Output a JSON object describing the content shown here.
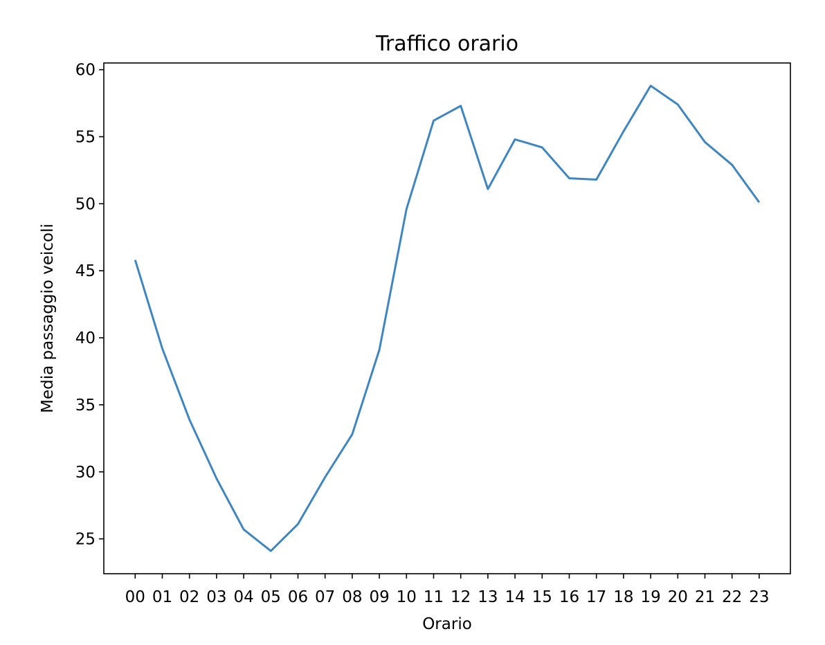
{
  "chart_data": {
    "type": "line",
    "title": "Traffico orario",
    "xlabel": "Orario",
    "ylabel": "Media passaggio veicoli",
    "categories": [
      "00",
      "01",
      "02",
      "03",
      "04",
      "05",
      "06",
      "07",
      "08",
      "09",
      "10",
      "11",
      "12",
      "13",
      "14",
      "15",
      "16",
      "17",
      "18",
      "19",
      "20",
      "21",
      "22",
      "23"
    ],
    "series": [
      {
        "values": [
          45.8,
          39.2,
          33.9,
          29.5,
          25.7,
          24.1,
          26.1,
          29.6,
          32.8,
          39.1,
          49.6,
          56.2,
          57.3,
          51.1,
          54.8,
          54.2,
          51.9,
          51.8,
          55.4,
          58.8,
          57.4,
          54.6,
          52.9,
          50.1
        ]
      }
    ],
    "yticks": [
      25,
      30,
      35,
      40,
      45,
      50,
      55,
      60
    ],
    "ylim": [
      22.4,
      60.5
    ],
    "grid": false,
    "line_color": "#3f86c0"
  }
}
